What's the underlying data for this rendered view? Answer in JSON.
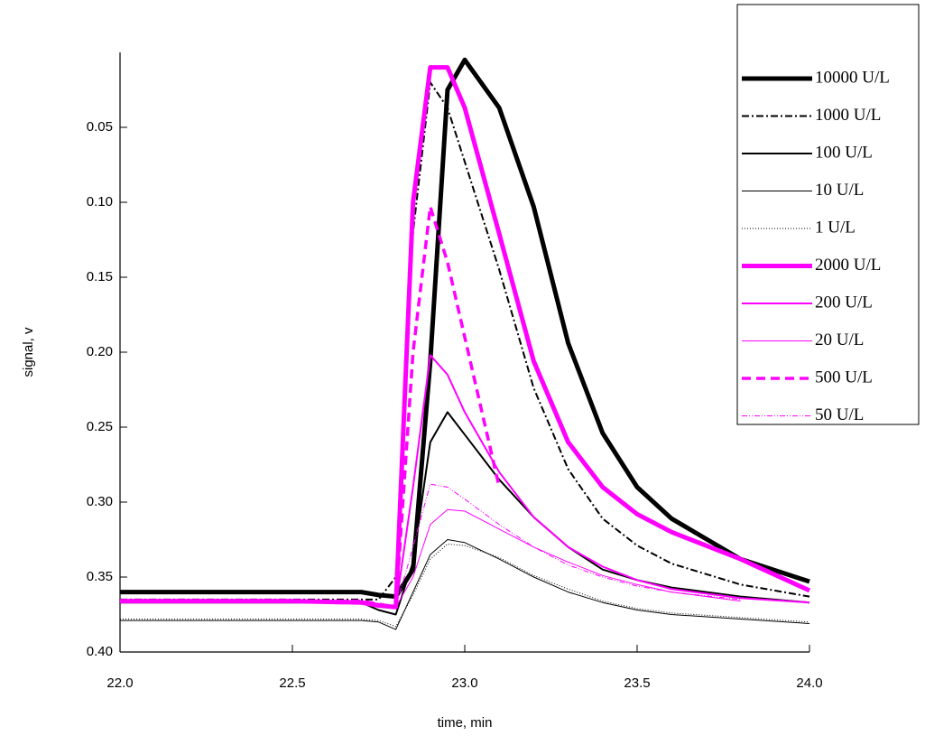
{
  "chart_data": {
    "type": "line",
    "x_label": "time, min",
    "y_label": "signal, v",
    "xlim": [
      22.0,
      24.0
    ],
    "ylim": [
      0.4,
      0.0
    ],
    "xticks": [
      {
        "value": 22.0,
        "label": "22.0"
      },
      22.5,
      {
        "value": 23.0,
        "label": "23.0"
      },
      23.5,
      {
        "value": 24.0,
        "label": "24.0"
      }
    ],
    "yticks": [
      0.05,
      {
        "value": 0.1,
        "label": "0.10"
      },
      0.15,
      {
        "value": 0.2,
        "label": "0.20"
      },
      0.25,
      {
        "value": 0.3,
        "label": "0.30"
      },
      0.35,
      {
        "value": 0.4,
        "label": "0.40"
      }
    ],
    "legend": "top-right",
    "x": [
      22.0,
      22.5,
      22.7,
      22.75,
      22.8,
      22.85,
      22.9,
      22.95,
      23.0,
      23.1,
      23.2,
      23.3,
      23.4,
      23.5,
      23.6,
      23.8,
      24.0
    ],
    "series": [
      {
        "name": "10000 U/L",
        "color": "#000000",
        "width": 5,
        "dash": "none",
        "values": [
          0.36,
          0.36,
          0.36,
          0.362,
          0.363,
          0.345,
          0.206,
          0.025,
          0.005,
          0.037,
          0.103,
          0.194,
          0.254,
          0.29,
          0.311,
          0.338,
          0.353
        ]
      },
      {
        "name": "1000 U/L",
        "color": "#000000",
        "width": 2,
        "dash": "8 3 2 3",
        "values": [
          0.365,
          0.365,
          0.365,
          0.365,
          0.35,
          0.12,
          0.02,
          0.037,
          0.073,
          0.145,
          0.224,
          0.278,
          0.311,
          0.329,
          0.341,
          0.355,
          0.363
        ]
      },
      {
        "name": "100 U/L",
        "color": "#000000",
        "width": 2,
        "dash": "none",
        "values": [
          0.367,
          0.367,
          0.367,
          0.372,
          0.375,
          0.34,
          0.26,
          0.24,
          0.255,
          0.285,
          0.31,
          0.33,
          0.345,
          0.352,
          0.357,
          0.363,
          0.367
        ]
      },
      {
        "name": "10 U/L",
        "color": "#000000",
        "width": 1,
        "dash": "none",
        "values": [
          0.379,
          0.379,
          0.379,
          0.38,
          0.385,
          0.36,
          0.335,
          0.325,
          0.327,
          0.338,
          0.35,
          0.36,
          0.367,
          0.372,
          0.375,
          0.378,
          0.381
        ]
      },
      {
        "name": "1 U/L",
        "color": "#000000",
        "width": 1,
        "dash": "1 2",
        "values": [
          0.378,
          0.378,
          0.378,
          0.379,
          0.383,
          0.362,
          0.338,
          0.328,
          0.329,
          0.337,
          0.349,
          0.358,
          0.366,
          0.371,
          0.374,
          0.377,
          0.38
        ]
      },
      {
        "name": "2000 U/L",
        "color": "#ff00ff",
        "width": 5,
        "dash": "none",
        "values": [
          0.366,
          0.366,
          0.367,
          0.369,
          0.37,
          0.1,
          0.01,
          0.01,
          0.037,
          0.121,
          0.206,
          0.26,
          0.29,
          0.308,
          0.32,
          0.338,
          0.359
        ]
      },
      {
        "name": "200 U/L",
        "color": "#ff00ff",
        "width": 2,
        "dash": "none",
        "values": [
          0.366,
          0.366,
          0.366,
          0.368,
          0.37,
          0.29,
          0.202,
          0.215,
          0.24,
          0.28,
          0.31,
          0.33,
          0.343,
          0.352,
          0.358,
          0.364,
          0.367
        ]
      },
      {
        "name": "20 U/L",
        "color": "#ff00ff",
        "width": 1,
        "dash": "none",
        "values": [
          0.367,
          0.367,
          0.367,
          0.368,
          0.37,
          0.35,
          0.315,
          0.305,
          0.306,
          0.318,
          0.33,
          0.34,
          0.349,
          0.355,
          0.36,
          0.366,
          null
        ]
      },
      {
        "name": "500 U/L",
        "color": "#ff00ff",
        "width": 3.5,
        "dash": "10 6",
        "values": [
          0.366,
          0.366,
          0.366,
          0.368,
          0.37,
          0.2,
          0.103,
          0.14,
          0.19,
          0.29,
          null,
          null,
          null,
          null,
          null,
          null,
          null
        ]
      },
      {
        "name": "50 U/L",
        "color": "#ff00ff",
        "width": 1,
        "dash": "6 2 1 2 1 2",
        "values": [
          0.367,
          0.367,
          0.367,
          0.368,
          0.37,
          0.33,
          0.288,
          0.29,
          0.298,
          0.315,
          0.33,
          0.342,
          0.35,
          0.356,
          0.36,
          0.365,
          null
        ]
      }
    ]
  }
}
